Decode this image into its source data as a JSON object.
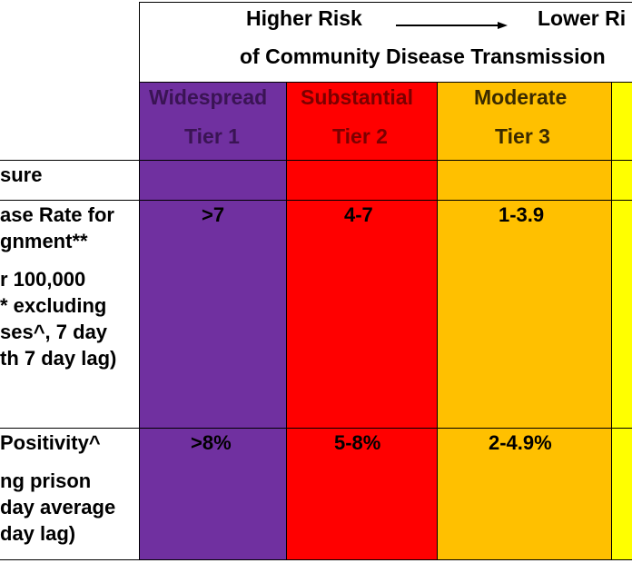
{
  "header": {
    "higher_risk": "Higher Risk",
    "lower_risk": "Lower Ri",
    "subtitle": "of Community Disease Transmission"
  },
  "tiers": [
    {
      "name": "Widespread",
      "tier": "Tier 1",
      "color": "#7030A0"
    },
    {
      "name": "Substantial",
      "tier": "Tier 2",
      "color": "#FF0000"
    },
    {
      "name": "Moderate",
      "tier": "Tier 3",
      "color": "#FFC000"
    },
    {
      "name": "",
      "tier": "",
      "color": "#FFFF00"
    }
  ],
  "rows": {
    "measure": {
      "label": "sure"
    },
    "case_rate": {
      "label_lines": [
        "ase Rate for",
        "gnment**",
        "r 100,000",
        "* excluding",
        "ses^, 7 day",
        "th 7 day lag)"
      ],
      "values": [
        ">7",
        "4-7",
        "1-3.9"
      ]
    },
    "positivity": {
      "label_lines": [
        "Positivity^",
        "ng prison",
        "day average",
        "day lag)"
      ],
      "values": [
        ">8%",
        "5-8%",
        "2-4.9%"
      ]
    }
  }
}
